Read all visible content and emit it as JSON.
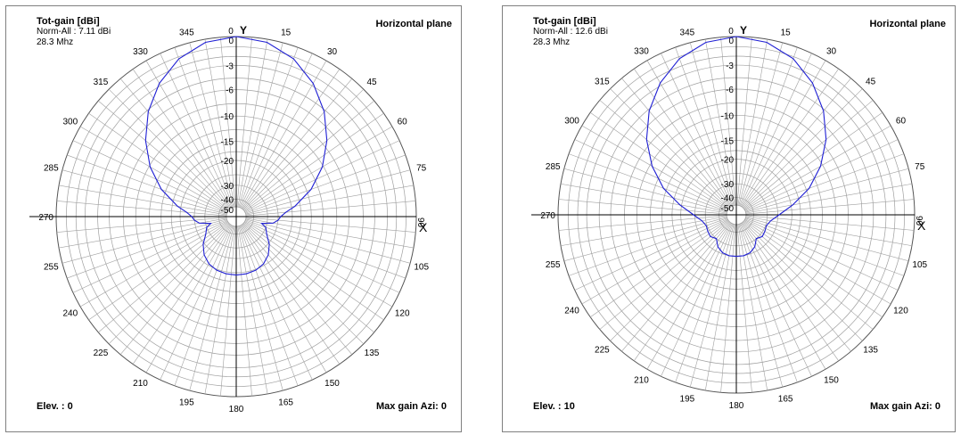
{
  "colors": {
    "pattern": "#1f1fd4",
    "grid": "#a0a0a0",
    "axes": "#000000"
  },
  "chart_data": [
    {
      "type": "polar",
      "title": "Tot-gain [dBi]",
      "norm": "Norm-All : 7.11 dBi",
      "freq": "28.3 Mhz",
      "plane": "Horizontal plane",
      "elev": "Elev. : 0",
      "maxgain": "Max gain Azi: 0",
      "axis_y": "Y",
      "axis_x": "X",
      "radial_ticks": [
        "0",
        "-3",
        "-6",
        "-10",
        "-15",
        "-20",
        "-30",
        "-40",
        "-50"
      ],
      "angle_labels": [
        "0",
        "15",
        "30",
        "45",
        "60",
        "75",
        "90",
        "105",
        "120",
        "135",
        "150",
        "165",
        "180",
        "195",
        "210",
        "225",
        "240",
        "255",
        "270",
        "285",
        "300",
        "315",
        "330",
        "345"
      ],
      "pattern_db": [
        [
          0,
          0
        ],
        [
          10,
          -0.3
        ],
        [
          20,
          -1.2
        ],
        [
          30,
          -2.7
        ],
        [
          40,
          -4.7
        ],
        [
          50,
          -7.2
        ],
        [
          60,
          -10.2
        ],
        [
          70,
          -14
        ],
        [
          80,
          -19
        ],
        [
          85,
          -22
        ],
        [
          90,
          -24
        ],
        [
          95,
          -25
        ],
        [
          100,
          -27
        ],
        [
          105,
          -33
        ],
        [
          110,
          -30
        ],
        [
          120,
          -28
        ],
        [
          130,
          -24.5
        ],
        [
          140,
          -22
        ],
        [
          150,
          -20.5
        ],
        [
          160,
          -19.7
        ],
        [
          170,
          -19.4
        ],
        [
          180,
          -19.3
        ],
        [
          190,
          -19.4
        ],
        [
          200,
          -19.7
        ],
        [
          210,
          -20.5
        ],
        [
          220,
          -22
        ],
        [
          230,
          -24.5
        ],
        [
          240,
          -28
        ],
        [
          250,
          -30
        ],
        [
          255,
          -33
        ],
        [
          260,
          -27
        ],
        [
          265,
          -25
        ],
        [
          270,
          -24
        ],
        [
          275,
          -22
        ],
        [
          280,
          -19
        ],
        [
          290,
          -14
        ],
        [
          300,
          -10.2
        ],
        [
          310,
          -7.2
        ],
        [
          320,
          -4.7
        ],
        [
          330,
          -2.7
        ],
        [
          340,
          -1.2
        ],
        [
          350,
          -0.3
        ]
      ]
    },
    {
      "type": "polar",
      "title": "Tot-gain [dBi]",
      "norm": "Norm-All : 12.6 dBi",
      "freq": "28.3 Mhz",
      "plane": "Horizontal plane",
      "elev": "Elev. : 10",
      "maxgain": "Max gain Azi: 0",
      "axis_y": "Y",
      "axis_x": "X",
      "radial_ticks": [
        "0",
        "-3",
        "-6",
        "-10",
        "-15",
        "-20",
        "-30",
        "-40",
        "-50"
      ],
      "angle_labels": [
        "0",
        "15",
        "30",
        "45",
        "60",
        "75",
        "90",
        "105",
        "120",
        "135",
        "150",
        "165",
        "180",
        "195",
        "210",
        "225",
        "240",
        "255",
        "270",
        "285",
        "300",
        "315",
        "330",
        "345"
      ],
      "pattern_db": [
        [
          0,
          0
        ],
        [
          10,
          -0.3
        ],
        [
          20,
          -1.2
        ],
        [
          30,
          -2.7
        ],
        [
          40,
          -4.7
        ],
        [
          50,
          -7.2
        ],
        [
          60,
          -10.4
        ],
        [
          70,
          -14.3
        ],
        [
          80,
          -19.5
        ],
        [
          90,
          -24.5
        ],
        [
          100,
          -28
        ],
        [
          110,
          -29.5
        ],
        [
          120,
          -29
        ],
        [
          130,
          -28.5
        ],
        [
          140,
          -30
        ],
        [
          150,
          -27
        ],
        [
          160,
          -25.5
        ],
        [
          170,
          -25
        ],
        [
          180,
          -25
        ],
        [
          190,
          -25
        ],
        [
          200,
          -25.5
        ],
        [
          210,
          -27
        ],
        [
          220,
          -30
        ],
        [
          230,
          -28.5
        ],
        [
          240,
          -29
        ],
        [
          250,
          -29.5
        ],
        [
          260,
          -28
        ],
        [
          270,
          -24.5
        ],
        [
          280,
          -19.5
        ],
        [
          290,
          -14.3
        ],
        [
          300,
          -10.4
        ],
        [
          310,
          -7.2
        ],
        [
          320,
          -4.7
        ],
        [
          330,
          -2.7
        ],
        [
          340,
          -1.2
        ],
        [
          350,
          -0.3
        ]
      ]
    }
  ]
}
